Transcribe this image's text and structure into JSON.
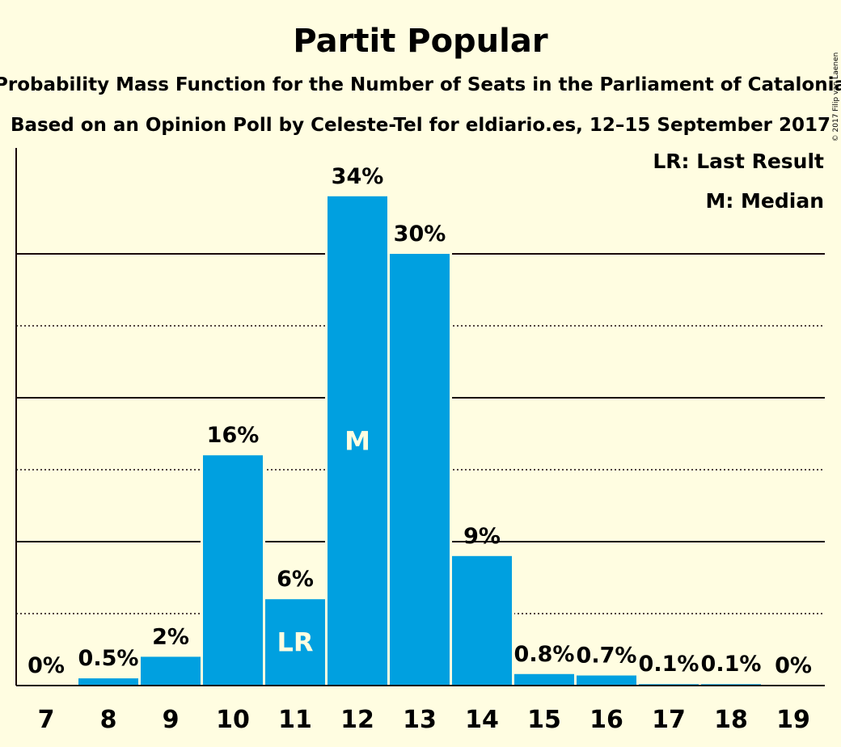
{
  "chart_data": {
    "type": "bar",
    "title": "Partit Popular",
    "subtitle": "Probability Mass Function for the Number of Seats in the Parliament of Catalonia",
    "subtitle2": "Based on an Opinion Poll by Celeste-Tel for eldiario.es, 12–15 September 2017",
    "copyright": "© 2017 Filip van Laenen",
    "legend": [
      "LR: Last Result",
      "M: Median"
    ],
    "legend_position": "top-right",
    "categories": [
      "7",
      "8",
      "9",
      "10",
      "11",
      "12",
      "13",
      "14",
      "15",
      "16",
      "17",
      "18",
      "19"
    ],
    "values": [
      0,
      0.5,
      2,
      16,
      6,
      34,
      30,
      9,
      0.8,
      0.7,
      0.1,
      0.1,
      0
    ],
    "data_labels": [
      "0%",
      "0.5%",
      "2%",
      "16%",
      "6%",
      "34%",
      "30%",
      "9%",
      "0.8%",
      "0.7%",
      "0.1%",
      "0.1%",
      "0%"
    ],
    "markers": [
      {
        "category": "11",
        "text": "LR"
      },
      {
        "category": "12",
        "text": "M"
      }
    ],
    "ylim": [
      0,
      37.5
    ],
    "gridlines_solid": [
      10,
      20,
      30
    ],
    "gridlines_dotted": [
      5,
      15,
      25
    ],
    "bar_color": "#00a0e0",
    "background_color": "#fffde1"
  }
}
